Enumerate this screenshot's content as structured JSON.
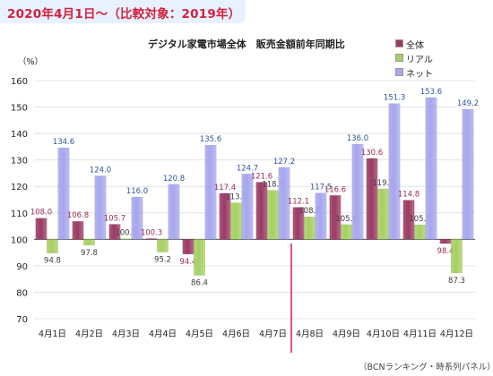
{
  "header": {
    "banner": "2020年4月1日～（比較対象：2019年）",
    "title": "デジタル家電市場全体　販売金額前年同期比",
    "unit": "（%）",
    "source": "（BCNランキング・時系列パネル）"
  },
  "colors": {
    "banner_bg": "#e8f1ff",
    "banner_text": "#d3213c",
    "zentai": "#9c3a64",
    "real": "#a6d063",
    "net": "#a6a6ee",
    "label_zentai": "#9a2c4c",
    "label_real": "#3c3c3c",
    "label_net": "#2e5597",
    "marker": "#d9184d",
    "grid": "#e4e4e4"
  },
  "chart_data": {
    "type": "bar",
    "title": "デジタル家電市場全体　販売金額前年同期比",
    "ylabel": "（%）",
    "xlabel": "",
    "ylim": [
      70,
      160
    ],
    "baseline": 100,
    "yticks": [
      70,
      80,
      90,
      100,
      110,
      120,
      130,
      140,
      150,
      160
    ],
    "legend_position": "top-right",
    "categories": [
      "4月1日",
      "4月2日",
      "4月3日",
      "4月4日",
      "4月5日",
      "4月6日",
      "4月7日",
      "4月8日",
      "4月9日",
      "4月10日",
      "4月11日",
      "4月12日"
    ],
    "series": [
      {
        "name": "全体",
        "values": [
          108.0,
          106.8,
          105.7,
          100.3,
          94.4,
          117.4,
          121.6,
          112.1,
          116.6,
          130.6,
          114.8,
          98.4
        ]
      },
      {
        "name": "リアル",
        "values": [
          94.8,
          97.8,
          100.2,
          95.2,
          86.4,
          113.8,
          118.5,
          108.5,
          105.6,
          119.1,
          105.5,
          87.3
        ]
      },
      {
        "name": "ネット",
        "values": [
          134.6,
          124.0,
          116.0,
          120.8,
          135.6,
          124.7,
          127.2,
          117.5,
          136.0,
          151.3,
          153.6,
          149.2
        ]
      }
    ],
    "marker_between": [
      "4月7日",
      "4月8日"
    ]
  }
}
